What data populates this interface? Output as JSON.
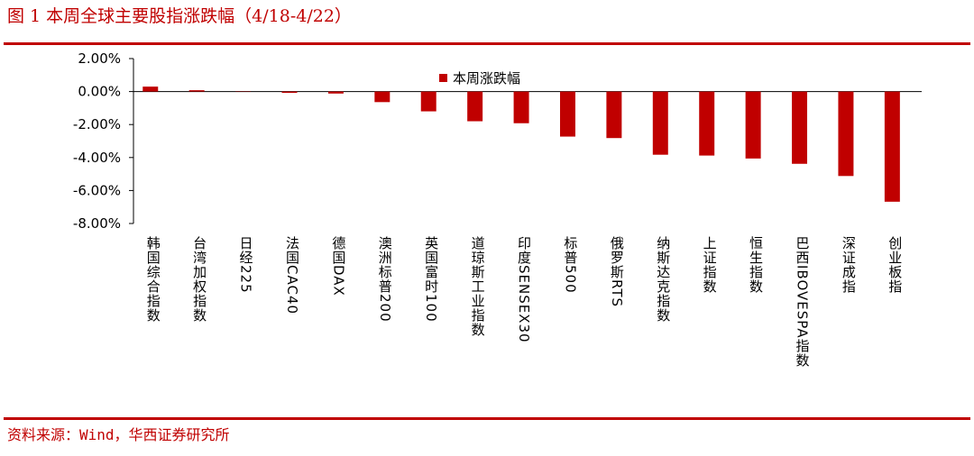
{
  "chart_data": {
    "type": "bar",
    "title": "图 1  本周全球主要股指涨跌幅（4/18-4/22）",
    "source": "资料来源：Wind，华西证券研究所",
    "categories": [
      "韩国综合指数",
      "台湾加权指数",
      "日经225",
      "法国CAC40",
      "德国DAX",
      "澳洲标普200",
      "英国富时100",
      "道琼斯工业指数",
      "印度SENSEX30",
      "标普500",
      "俄罗斯RTS",
      "纳斯达克指数",
      "上证指数",
      "恒生指数",
      "巴西IBOVESPA指数",
      "深证成指",
      "创业板指"
    ],
    "series": [
      {
        "name": "本周涨跌幅",
        "color": "#c00000",
        "values": [
          0.3,
          0.08,
          0.02,
          -0.08,
          -0.12,
          -0.64,
          -1.2,
          -1.8,
          -1.92,
          -2.73,
          -2.82,
          -3.83,
          -3.88,
          -4.06,
          -4.38,
          -5.12,
          -6.68
        ]
      }
    ],
    "ylim": [
      -8,
      2
    ],
    "yticks": [
      {
        "value": -8,
        "label": "-8.00%"
      },
      {
        "value": -6,
        "label": "-6.00%"
      },
      {
        "value": -4,
        "label": "-4.00%"
      },
      {
        "value": -2,
        "label": "-2.00%"
      },
      {
        "value": 0,
        "label": "0.00%"
      },
      {
        "value": 2,
        "label": "2.00%"
      }
    ]
  }
}
